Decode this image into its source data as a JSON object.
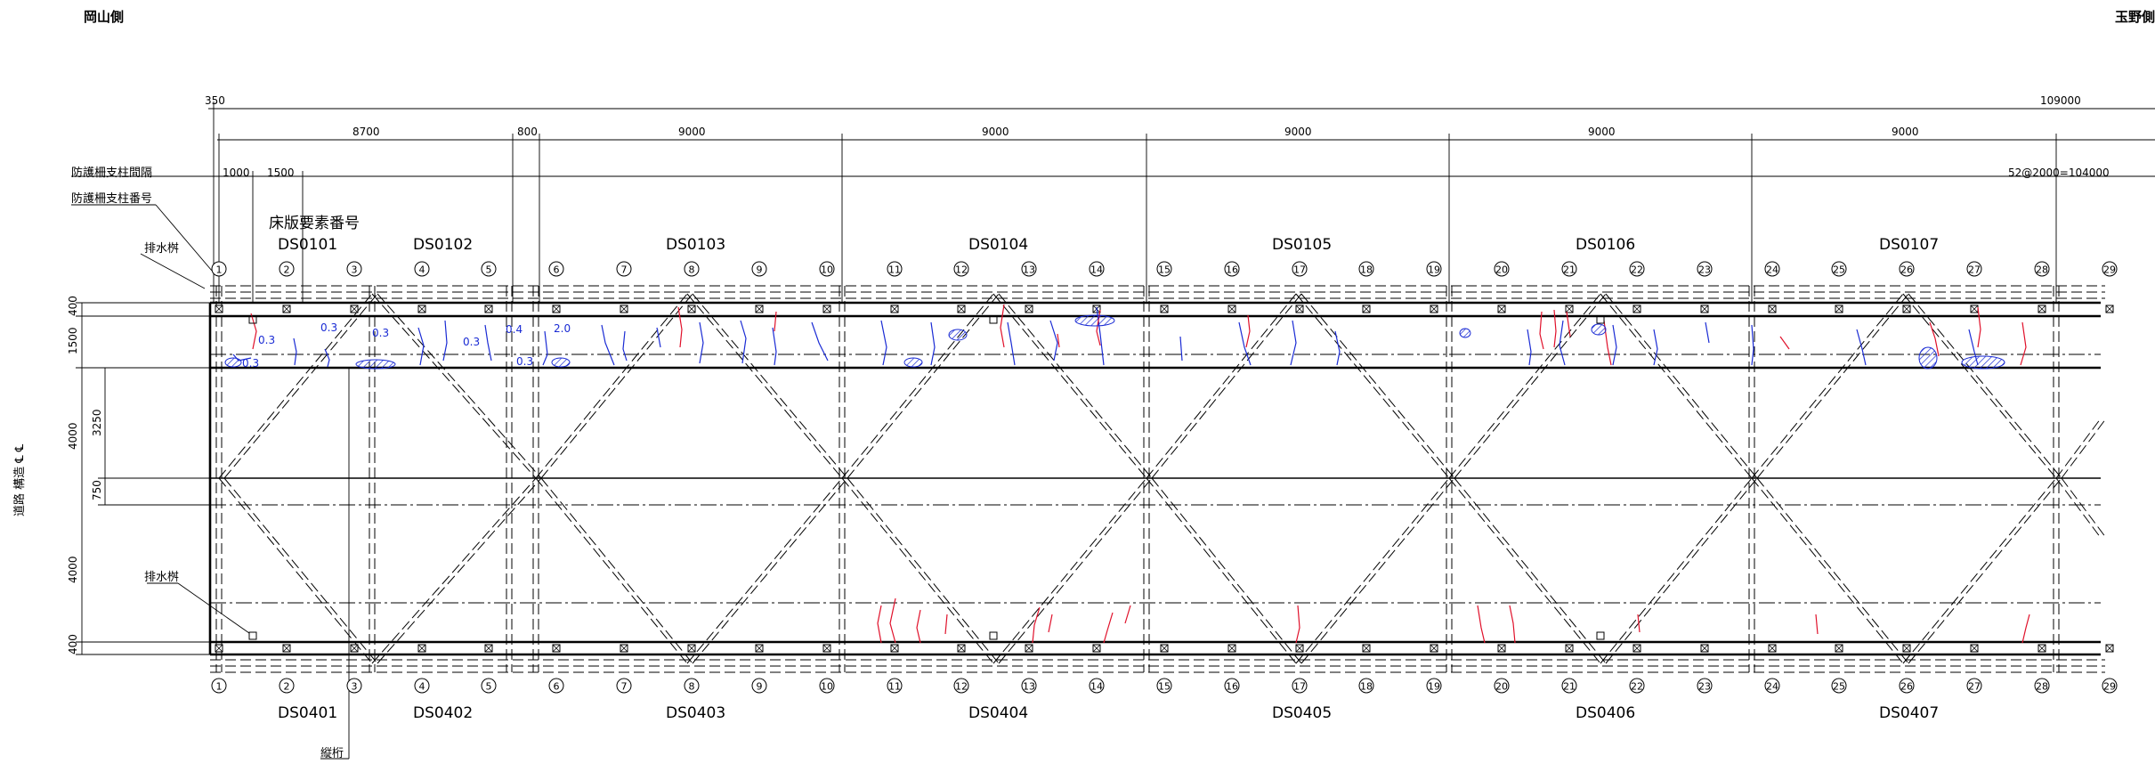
{
  "header": {
    "left_side_label": "岡山側",
    "right_side_label": "玉野側"
  },
  "labels": {
    "rail_interval": "防護柵支柱間隔",
    "rail_number": "防護柵支柱番号",
    "element_number": "床版要素番号",
    "drain_top": "排水桝",
    "drain_bottom": "排水桝",
    "stringer": "縦桁",
    "centerline": "道路 構造 ℄ ℄"
  },
  "dimensions_top": {
    "first": "350",
    "total": "109000",
    "spans": [
      "8700",
      "800",
      "9000",
      "9000",
      "9000",
      "9000",
      "9000"
    ],
    "sub1": "1000",
    "sub2": "1500",
    "rail_total": "52@2000=104000"
  },
  "dimensions_left": [
    "400",
    "1500",
    "4000",
    "3250",
    "750",
    "4000",
    "400"
  ],
  "elements_top": [
    "DS0101",
    "DS0102",
    "DS0103",
    "DS0104",
    "DS0105",
    "DS0106",
    "DS0107"
  ],
  "elements_bottom": [
    "DS0401",
    "DS0402",
    "DS0403",
    "DS0404",
    "DS0405",
    "DS0406",
    "DS0407"
  ],
  "post_numbers": [
    "①",
    "②",
    "③",
    "④",
    "⑤",
    "⑥",
    "⑦",
    "⑧",
    "⑨",
    "⑩",
    "⑪",
    "⑫",
    "⑬",
    "⑭",
    "⑮",
    "⑯",
    "⑰",
    "⑱",
    "⑲",
    "⑳",
    "㉑",
    "㉒",
    "㉓",
    "㉔",
    "㉕",
    "㉖",
    "㉗",
    "㉘",
    "㉙"
  ],
  "crack_widths": [
    "0.3",
    "0.3",
    "0.3",
    "0.3",
    "0.4",
    "2.0",
    "0.3",
    "0.3"
  ],
  "colors": {
    "crack_blue": "#1a2bd4",
    "crack_red": "#e0102a",
    "line": "#000000"
  }
}
